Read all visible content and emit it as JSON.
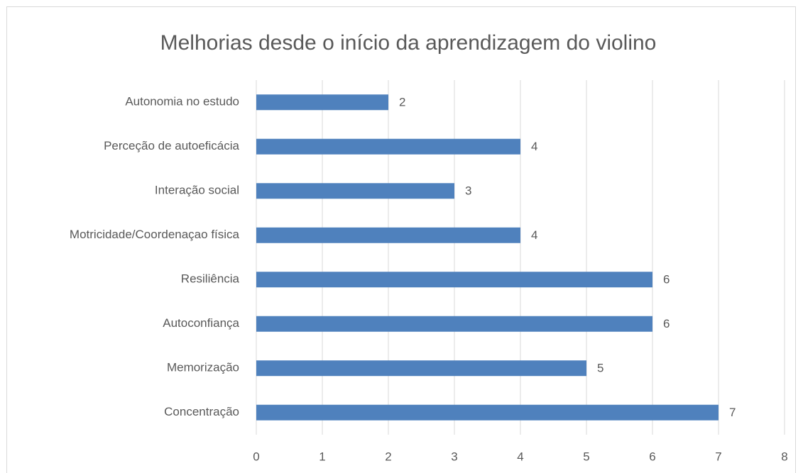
{
  "chart_data": {
    "type": "hbar",
    "title": "Melhorias desde o início da aprendizagem do violino",
    "categories": [
      "Autonomia no estudo",
      "Perceção de autoeficácia",
      "Interação social",
      "Motricidade/Coordenaçao física",
      "Resiliência",
      "Autoconfiança",
      "Memorização",
      "Concentração"
    ],
    "values": [
      2,
      4,
      3,
      4,
      6,
      6,
      5,
      7
    ],
    "color": "#4f81bd",
    "xlim": [
      0,
      8
    ],
    "xticks": [
      0,
      1,
      2,
      3,
      4,
      5,
      6,
      7,
      8
    ],
    "grid": true
  }
}
